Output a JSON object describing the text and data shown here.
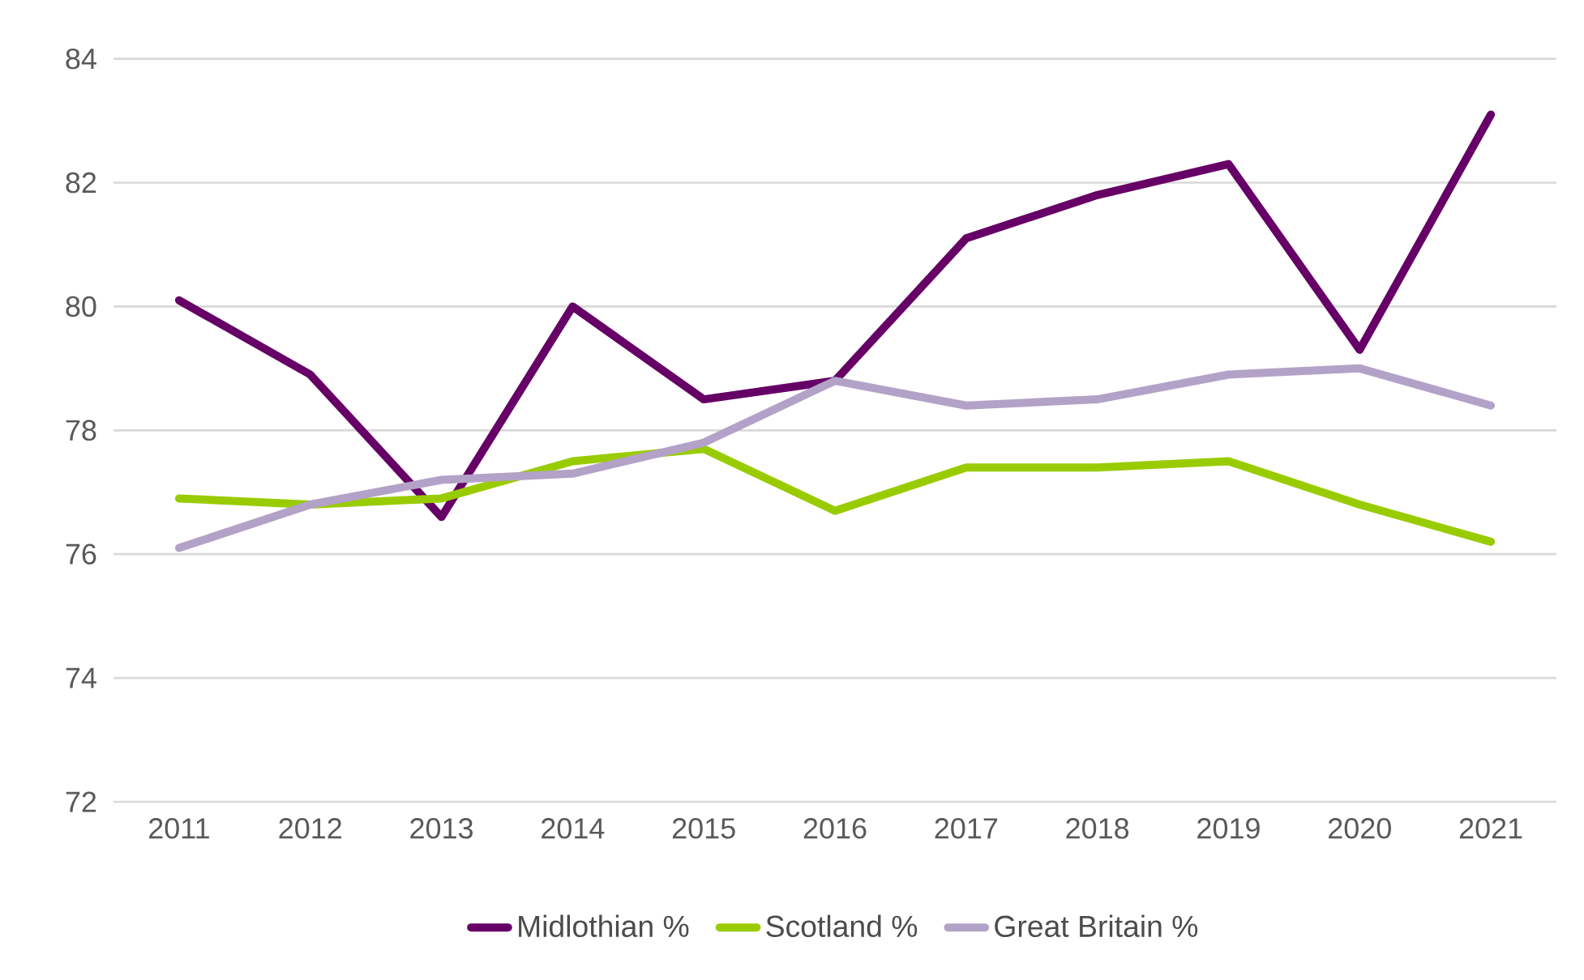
{
  "chart_data": {
    "type": "line",
    "categories": [
      "2011",
      "2012",
      "2013",
      "2014",
      "2015",
      "2016",
      "2017",
      "2018",
      "2019",
      "2020",
      "2021"
    ],
    "series": [
      {
        "name": "Midlothian %",
        "color": "#660066",
        "values": [
          80.1,
          78.9,
          76.6,
          80.0,
          78.5,
          78.8,
          81.1,
          81.8,
          82.3,
          79.3,
          83.1
        ]
      },
      {
        "name": "Scotland %",
        "color": "#99cc00",
        "values": [
          76.9,
          76.8,
          76.9,
          77.5,
          77.7,
          76.7,
          77.4,
          77.4,
          77.5,
          76.8,
          76.2
        ]
      },
      {
        "name": "Great Britain %",
        "color": "#b3a2c7",
        "values": [
          76.1,
          76.8,
          77.2,
          77.3,
          77.8,
          78.8,
          78.4,
          78.5,
          78.9,
          79.0,
          78.4
        ]
      }
    ],
    "ylim": [
      72,
      84
    ],
    "yticks": [
      72,
      74,
      76,
      78,
      80,
      82,
      84
    ],
    "grid": "y",
    "legend": "bottom",
    "marker": "none",
    "line_style": "solid"
  }
}
